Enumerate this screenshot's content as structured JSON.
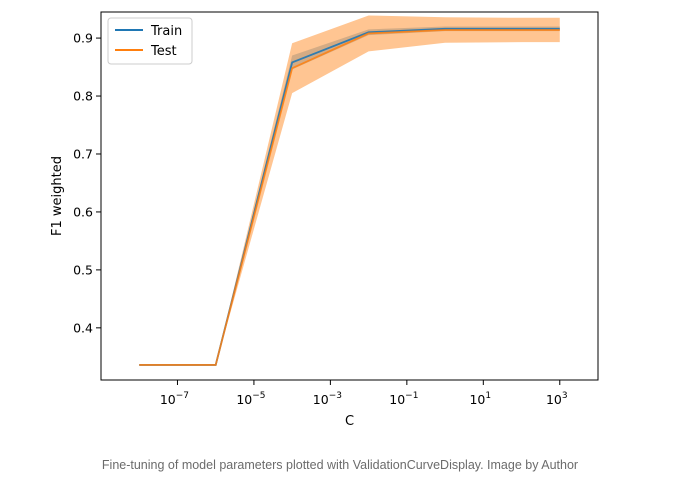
{
  "caption": "Fine-tuning of model parameters plotted with ValidationCurveDisplay. Image by Author",
  "chart_data": {
    "type": "line",
    "title": "",
    "xlabel": "C",
    "ylabel": "F1 weighted",
    "xscale": "log",
    "xlim": [
      1e-09,
      10000
    ],
    "ylim": [
      0.31,
      0.945
    ],
    "xticks": [
      {
        "base": "10",
        "exp": "−7",
        "value": 1e-07
      },
      {
        "base": "10",
        "exp": "−5",
        "value": 1e-05
      },
      {
        "base": "10",
        "exp": "−3",
        "value": 0.001
      },
      {
        "base": "10",
        "exp": "−1",
        "value": 0.1
      },
      {
        "base": "10",
        "exp": "1",
        "value": 10
      },
      {
        "base": "10",
        "exp": "3",
        "value": 1000
      }
    ],
    "yticks": [
      "0.4",
      "0.5",
      "0.6",
      "0.7",
      "0.8",
      "0.9"
    ],
    "x": [
      1e-08,
      1e-06,
      0.0001,
      0.01,
      1,
      100,
      1000
    ],
    "series": [
      {
        "name": "Train",
        "color": "#1f77b4",
        "mean": [
          0.336,
          0.336,
          0.858,
          0.91,
          0.916,
          0.916,
          0.916
        ],
        "std": [
          0.0,
          0.0,
          0.012,
          0.005,
          0.004,
          0.004,
          0.004
        ]
      },
      {
        "name": "Test",
        "color": "#ff7f0e",
        "mean": [
          0.336,
          0.336,
          0.848,
          0.908,
          0.914,
          0.914,
          0.914
        ],
        "std": [
          0.0,
          0.0,
          0.043,
          0.031,
          0.022,
          0.021,
          0.021
        ]
      }
    ],
    "legend": "top-left",
    "grid": false
  }
}
